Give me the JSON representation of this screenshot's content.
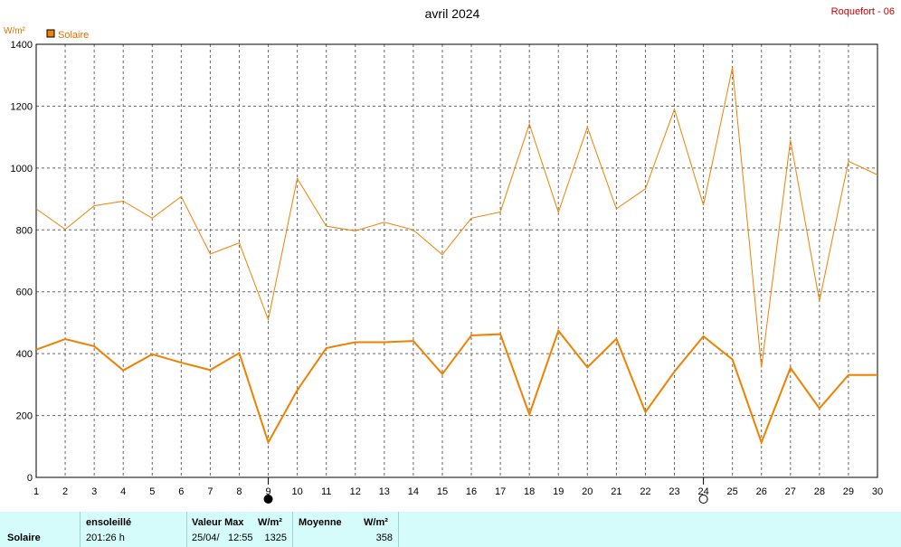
{
  "header": {
    "title": "avril 2024",
    "station": "Roquefort - 06",
    "unit": "W/m²",
    "legend_label": "Solaire"
  },
  "colors": {
    "series": "#f08000",
    "summary_bg": "#d6fbfb",
    "station_text": "#cc0000"
  },
  "chart_data": {
    "type": "line",
    "title": "avril 2024",
    "ylabel": "W/m²",
    "ylim": [
      0,
      1400
    ],
    "yticks": [
      0,
      200,
      400,
      600,
      800,
      1000,
      1200,
      1400
    ],
    "x": [
      1,
      2,
      3,
      4,
      5,
      6,
      7,
      8,
      9,
      10,
      11,
      12,
      13,
      14,
      15,
      16,
      17,
      18,
      19,
      20,
      21,
      22,
      23,
      24,
      25,
      26,
      27,
      28,
      29,
      30
    ],
    "grid": true,
    "legend_position": "top-left",
    "moon_phases": [
      {
        "day": 9,
        "phase": "new-moon"
      },
      {
        "day": 24,
        "phase": "full-moon"
      }
    ],
    "series": [
      {
        "name": "Solaire",
        "style": "thin",
        "values": [
          868,
          802,
          878,
          893,
          838,
          908,
          722,
          758,
          510,
          966,
          812,
          797,
          825,
          800,
          720,
          838,
          858,
          1142,
          857,
          1132,
          868,
          933,
          1190,
          880,
          1325,
          355,
          1090,
          570,
          1022,
          978
        ]
      },
      {
        "name": "Solaire",
        "style": "thick",
        "values": [
          413,
          447,
          424,
          346,
          398,
          371,
          347,
          402,
          113,
          282,
          418,
          437,
          437,
          441,
          334,
          459,
          463,
          204,
          474,
          356,
          448,
          211,
          342,
          456,
          381,
          113,
          354,
          223,
          331,
          331
        ]
      }
    ]
  },
  "summary": {
    "row_label": "Solaire",
    "sunshine_header": "ensoleillé",
    "sunshine_value": "201:26 h",
    "max_header": "Valeur Max",
    "max_unit": "W/m²",
    "max_date": "25/04/",
    "max_time": "12:55",
    "max_value": "1325",
    "avg_header": "Moyenne",
    "avg_unit": "W/m²",
    "avg_value": "358"
  }
}
